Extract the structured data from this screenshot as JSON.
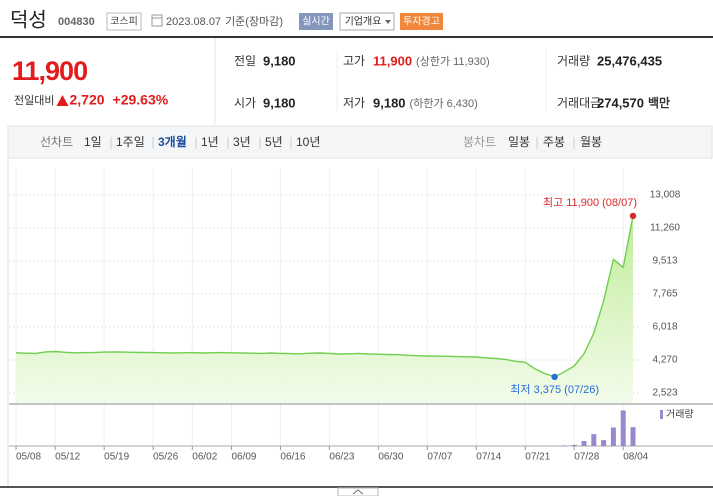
{
  "header": {
    "name": "덕성",
    "code": "004830",
    "market": "코스피",
    "date": "2023.08.07",
    "basis": "기준(장마감)",
    "badges": [
      "실시간",
      "기업개요",
      "투자경고"
    ]
  },
  "price": {
    "current": "11,900",
    "change_label": "전일대비",
    "change": "2,720",
    "rate": "+29.63%",
    "color": "#e21c1c"
  },
  "quote_table": {
    "rows": [
      [
        {
          "label": "전일",
          "value": "9,180"
        },
        {
          "label": "고가",
          "value": "11,900",
          "note": "(상한가 11,930)",
          "color": "#e21c1c"
        },
        {
          "label": "거래량",
          "value": "25,476,435"
        }
      ],
      [
        {
          "label": "시가",
          "value": "9,180"
        },
        {
          "label": "저가",
          "value": "9,180",
          "note": "(하한가 6,430)"
        },
        {
          "label": "거래대금",
          "value": "274,570",
          "unit": "백만"
        }
      ]
    ]
  },
  "tabs": {
    "line_label": "선차트",
    "line": [
      "1일",
      "1주일",
      "3개월",
      "1년",
      "3년",
      "5년",
      "10년"
    ],
    "selected": 2,
    "candle_label": "봉차트",
    "candle": [
      "일봉",
      "주봉",
      "월봉"
    ]
  },
  "chart_data": {
    "type": "line",
    "categories": [
      "05/08",
      null,
      null,
      null,
      "05/12",
      null,
      null,
      null,
      null,
      "05/19",
      null,
      null,
      null,
      null,
      "05/26",
      null,
      null,
      null,
      "06/02",
      null,
      null,
      null,
      "06/09",
      null,
      null,
      null,
      null,
      "06/16",
      null,
      null,
      null,
      null,
      "06/23",
      null,
      null,
      null,
      null,
      "06/30",
      null,
      null,
      null,
      null,
      "07/07",
      null,
      null,
      null,
      null,
      "07/14",
      null,
      null,
      null,
      null,
      "07/21",
      null,
      null,
      null,
      null,
      "07/28",
      null,
      null,
      null,
      null,
      "08/04",
      null
    ],
    "values": [
      4650,
      4630,
      4620,
      4700,
      4720,
      4680,
      4650,
      4660,
      4670,
      4690,
      4700,
      4690,
      4680,
      4670,
      4660,
      4650,
      4640,
      4650,
      4660,
      4640,
      4650,
      4660,
      4650,
      4640,
      4630,
      4620,
      4640,
      4620,
      4610,
      4600,
      4630,
      4640,
      4620,
      4590,
      4600,
      4620,
      4590,
      4580,
      4560,
      4550,
      4520,
      4500,
      4480,
      4470,
      4470,
      4450,
      4440,
      4430,
      4380,
      4350,
      4300,
      4200,
      4150,
      3800,
      3550,
      3375,
      3650,
      3950,
      4600,
      5700,
      7400,
      9600,
      9180,
      11900
    ],
    "color": "#6fcf4f",
    "ylim": [
      2523,
      13008
    ],
    "yticks": [
      {
        "value": 2523,
        "label": "2,523"
      },
      {
        "value": 4270,
        "label": "4,270"
      },
      {
        "value": 6018,
        "label": "6,018"
      },
      {
        "value": 7765,
        "label": "7,765"
      },
      {
        "value": 9513,
        "label": "9,513"
      },
      {
        "value": 11260,
        "label": "11,260"
      },
      {
        "value": 13008,
        "label": "13,008"
      }
    ],
    "grid": true,
    "annotations": {
      "max_label": "최고 11,900 (08/07)",
      "max_color": "#d42a2a",
      "min_label": "최저 3,375 (07/26)",
      "min_color": "#2a6dd6"
    },
    "volume": {
      "name": "거래량",
      "color": "#9a88cf",
      "ylim": [
        0,
        54000000
      ],
      "values": [
        100000,
        100000,
        100000,
        100000,
        100000,
        100000,
        100000,
        100000,
        100000,
        100000,
        100000,
        100000,
        100000,
        100000,
        100000,
        100000,
        100000,
        100000,
        100000,
        100000,
        100000,
        100000,
        100000,
        100000,
        100000,
        100000,
        100000,
        100000,
        100000,
        100000,
        100000,
        100000,
        100000,
        100000,
        100000,
        100000,
        100000,
        100000,
        100000,
        100000,
        100000,
        100000,
        100000,
        100000,
        100000,
        100000,
        100000,
        100000,
        100000,
        100000,
        100000,
        100000,
        100000,
        100000,
        100000,
        100000,
        800000,
        1500000,
        6700000,
        16000000,
        8000000,
        25000000,
        48000000,
        25476435
      ]
    }
  }
}
